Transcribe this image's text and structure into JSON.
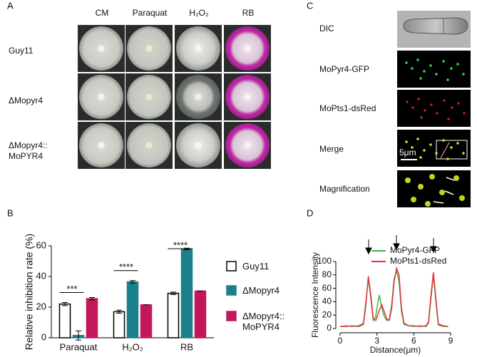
{
  "panels": {
    "A": {
      "label": "A",
      "columns": [
        "CM",
        "Paraquat",
        "H₂O₂",
        "RB"
      ],
      "rows": [
        "Guy11",
        "ΔMopyr4",
        "ΔMopyr4:: MoPYR4"
      ]
    },
    "C": {
      "label": "C",
      "rows": [
        "DIC",
        "MoPyr4-GFP",
        "MoPts1-dsRed",
        "Merge",
        "Magnification"
      ],
      "scale_bar": "5μm"
    }
  },
  "chart_data": [
    {
      "type": "bar",
      "panel_label": "B",
      "ylabel": "Relative inhibition rate (%)",
      "categories": [
        "Paraquat",
        "H₂O₂",
        "RB"
      ],
      "series": [
        {
          "name": "Guy11",
          "color": "#ffffff",
          "values": [
            22,
            17,
            29
          ],
          "errors": [
            1,
            1,
            0.8
          ]
        },
        {
          "name": "ΔMopyr4",
          "color": "#1b7f8c",
          "values": [
            1.5,
            36.5,
            58
          ],
          "errors": [
            3,
            0.8,
            0.5
          ]
        },
        {
          "name": "ΔMopyr4:: MoPYR4",
          "color": "#c2185b",
          "values": [
            25.5,
            21.5,
            30.5
          ],
          "errors": [
            0.8,
            0,
            0
          ]
        }
      ],
      "significance": [
        "***",
        "****",
        "****"
      ],
      "ylim": [
        0,
        60
      ],
      "yticks": [
        0,
        20,
        40,
        60
      ]
    },
    {
      "type": "line",
      "panel_label": "D",
      "xlabel": "Distance(μm)",
      "ylabel": "Fluorescence Intensity",
      "x": [
        0,
        0.5,
        1,
        1.5,
        1.9,
        2.1,
        2.3,
        2.5,
        2.7,
        2.9,
        3.1,
        3.2,
        3.4,
        3.6,
        3.8,
        4.0,
        4.2,
        4.4,
        4.6,
        4.8,
        5.0,
        5.2,
        5.6,
        6,
        6.5,
        7,
        7.2,
        7.4,
        7.6,
        7.8,
        8,
        8.4,
        8.8
      ],
      "series": [
        {
          "name": "MoPyr4-GFP",
          "color": "#3cb84a",
          "values": [
            3,
            4,
            3,
            4,
            8,
            40,
            75,
            45,
            12,
            18,
            42,
            50,
            30,
            18,
            12,
            14,
            35,
            75,
            86,
            70,
            25,
            6,
            4,
            3,
            4,
            3,
            8,
            45,
            80,
            40,
            5,
            3,
            3
          ]
        },
        {
          "name": "MoPts1-dsRed",
          "color": "#e8303a",
          "values": [
            3,
            3,
            4,
            3,
            6,
            35,
            78,
            50,
            15,
            12,
            22,
            28,
            35,
            25,
            14,
            12,
            30,
            70,
            90,
            80,
            30,
            8,
            4,
            4,
            3,
            4,
            10,
            50,
            84,
            45,
            7,
            4,
            3
          ]
        }
      ],
      "xlim": [
        0,
        9
      ],
      "xticks": [
        0,
        3,
        6,
        9
      ],
      "ylim": [
        0,
        100
      ],
      "yticks": [
        0,
        20,
        40,
        60,
        80,
        100
      ]
    }
  ]
}
